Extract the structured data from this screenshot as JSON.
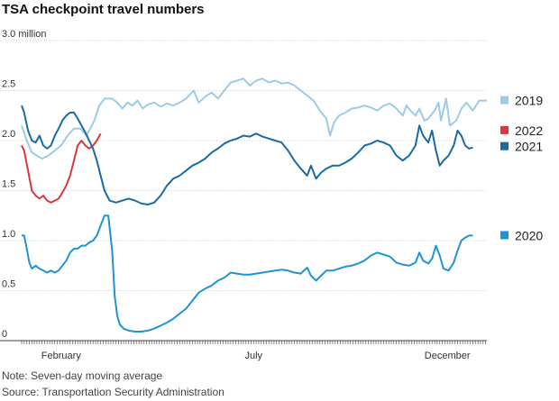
{
  "chart_data": {
    "type": "line",
    "title": "TSA checkpoint travel numbers",
    "y_unit_label": "3.0 million",
    "ylim": [
      0,
      3.0
    ],
    "y_ticks": [
      0,
      0.5,
      1.0,
      1.5,
      2.0,
      2.5,
      3.0
    ],
    "y_tick_labels": [
      "0",
      "0.5",
      "1.0",
      "1.5",
      "2.0",
      "2.5",
      "3.0 million"
    ],
    "x_unit": "day of year",
    "xlim": [
      1,
      366
    ],
    "x_tick_labels": [
      {
        "label": "February",
        "day": 32
      },
      {
        "label": "July",
        "day": 183
      },
      {
        "label": "December",
        "day": 335
      }
    ],
    "grid": true,
    "legend": "right",
    "series": [
      {
        "name": "2019",
        "color": "#9ccbe8",
        "points": [
          [
            1,
            2.15
          ],
          [
            5,
            2.0
          ],
          [
            9,
            1.88
          ],
          [
            13,
            1.85
          ],
          [
            17,
            1.82
          ],
          [
            22,
            1.85
          ],
          [
            27,
            1.9
          ],
          [
            32,
            1.95
          ],
          [
            37,
            2.05
          ],
          [
            42,
            2.12
          ],
          [
            47,
            2.12
          ],
          [
            52,
            2.05
          ],
          [
            58,
            2.2
          ],
          [
            62,
            2.35
          ],
          [
            66,
            2.42
          ],
          [
            72,
            2.42
          ],
          [
            76,
            2.38
          ],
          [
            80,
            2.32
          ],
          [
            84,
            2.38
          ],
          [
            88,
            2.35
          ],
          [
            92,
            2.4
          ],
          [
            96,
            2.32
          ],
          [
            100,
            2.36
          ],
          [
            105,
            2.38
          ],
          [
            110,
            2.34
          ],
          [
            115,
            2.37
          ],
          [
            120,
            2.35
          ],
          [
            125,
            2.38
          ],
          [
            130,
            2.42
          ],
          [
            136,
            2.5
          ],
          [
            140,
            2.38
          ],
          [
            145,
            2.44
          ],
          [
            150,
            2.48
          ],
          [
            155,
            2.42
          ],
          [
            160,
            2.5
          ],
          [
            165,
            2.58
          ],
          [
            170,
            2.6
          ],
          [
            175,
            2.62
          ],
          [
            180,
            2.55
          ],
          [
            185,
            2.6
          ],
          [
            190,
            2.62
          ],
          [
            195,
            2.58
          ],
          [
            200,
            2.6
          ],
          [
            205,
            2.57
          ],
          [
            210,
            2.58
          ],
          [
            215,
            2.55
          ],
          [
            220,
            2.5
          ],
          [
            225,
            2.45
          ],
          [
            230,
            2.4
          ],
          [
            235,
            2.3
          ],
          [
            240,
            2.22
          ],
          [
            243,
            2.05
          ],
          [
            246,
            2.18
          ],
          [
            250,
            2.25
          ],
          [
            255,
            2.28
          ],
          [
            260,
            2.32
          ],
          [
            265,
            2.33
          ],
          [
            270,
            2.35
          ],
          [
            275,
            2.33
          ],
          [
            280,
            2.3
          ],
          [
            285,
            2.35
          ],
          [
            290,
            2.37
          ],
          [
            295,
            2.32
          ],
          [
            300,
            2.25
          ],
          [
            303,
            2.35
          ],
          [
            306,
            2.3
          ],
          [
            310,
            2.25
          ],
          [
            313,
            2.32
          ],
          [
            317,
            2.2
          ],
          [
            320,
            2.22
          ],
          [
            325,
            2.3
          ],
          [
            328,
            2.38
          ],
          [
            330,
            2.2
          ],
          [
            334,
            2.42
          ],
          [
            337,
            2.15
          ],
          [
            342,
            2.2
          ],
          [
            346,
            2.32
          ],
          [
            350,
            2.38
          ],
          [
            355,
            2.3
          ],
          [
            360,
            2.4
          ],
          [
            366,
            2.4
          ]
        ]
      },
      {
        "name": "2022",
        "color": "#d9363e",
        "points": [
          [
            1,
            1.95
          ],
          [
            3,
            1.9
          ],
          [
            6,
            1.7
          ],
          [
            9,
            1.5
          ],
          [
            12,
            1.45
          ],
          [
            15,
            1.42
          ],
          [
            18,
            1.45
          ],
          [
            21,
            1.4
          ],
          [
            24,
            1.38
          ],
          [
            27,
            1.4
          ],
          [
            30,
            1.42
          ],
          [
            33,
            1.48
          ],
          [
            36,
            1.55
          ],
          [
            39,
            1.65
          ],
          [
            42,
            1.8
          ],
          [
            45,
            1.95
          ],
          [
            48,
            2.0
          ],
          [
            51,
            1.95
          ],
          [
            54,
            1.92
          ],
          [
            57,
            1.95
          ],
          [
            60,
            2.0
          ],
          [
            63,
            2.07
          ]
        ]
      },
      {
        "name": "2021",
        "color": "#1a6aa3",
        "points": [
          [
            1,
            2.35
          ],
          [
            3,
            2.28
          ],
          [
            6,
            2.1
          ],
          [
            9,
            2.0
          ],
          [
            12,
            1.98
          ],
          [
            15,
            2.05
          ],
          [
            18,
            1.95
          ],
          [
            21,
            1.92
          ],
          [
            24,
            1.95
          ],
          [
            27,
            2.05
          ],
          [
            30,
            2.12
          ],
          [
            33,
            2.2
          ],
          [
            36,
            2.25
          ],
          [
            39,
            2.28
          ],
          [
            42,
            2.28
          ],
          [
            45,
            2.22
          ],
          [
            48,
            2.15
          ],
          [
            51,
            2.08
          ],
          [
            54,
            2.0
          ],
          [
            57,
            1.92
          ],
          [
            60,
            1.8
          ],
          [
            63,
            1.65
          ],
          [
            66,
            1.5
          ],
          [
            70,
            1.4
          ],
          [
            75,
            1.38
          ],
          [
            80,
            1.4
          ],
          [
            85,
            1.42
          ],
          [
            90,
            1.4
          ],
          [
            95,
            1.37
          ],
          [
            100,
            1.36
          ],
          [
            105,
            1.38
          ],
          [
            110,
            1.45
          ],
          [
            115,
            1.55
          ],
          [
            120,
            1.62
          ],
          [
            125,
            1.65
          ],
          [
            130,
            1.7
          ],
          [
            135,
            1.75
          ],
          [
            140,
            1.78
          ],
          [
            145,
            1.82
          ],
          [
            150,
            1.88
          ],
          [
            155,
            1.92
          ],
          [
            160,
            1.97
          ],
          [
            165,
            2.0
          ],
          [
            170,
            2.02
          ],
          [
            175,
            2.05
          ],
          [
            180,
            2.04
          ],
          [
            185,
            2.07
          ],
          [
            190,
            2.04
          ],
          [
            195,
            2.02
          ],
          [
            200,
            2.0
          ],
          [
            205,
            1.98
          ],
          [
            210,
            1.9
          ],
          [
            215,
            1.8
          ],
          [
            220,
            1.72
          ],
          [
            225,
            1.65
          ],
          [
            228,
            1.75
          ],
          [
            232,
            1.62
          ],
          [
            236,
            1.68
          ],
          [
            240,
            1.72
          ],
          [
            245,
            1.75
          ],
          [
            250,
            1.75
          ],
          [
            255,
            1.78
          ],
          [
            260,
            1.82
          ],
          [
            265,
            1.88
          ],
          [
            270,
            1.95
          ],
          [
            275,
            1.97
          ],
          [
            280,
            2.0
          ],
          [
            285,
            1.98
          ],
          [
            290,
            1.95
          ],
          [
            295,
            1.85
          ],
          [
            300,
            1.8
          ],
          [
            305,
            1.85
          ],
          [
            310,
            1.95
          ],
          [
            313,
            2.15
          ],
          [
            316,
            2.05
          ],
          [
            320,
            1.98
          ],
          [
            323,
            2.1
          ],
          [
            326,
            1.9
          ],
          [
            329,
            1.75
          ],
          [
            332,
            1.8
          ],
          [
            336,
            1.85
          ],
          [
            340,
            1.95
          ],
          [
            343,
            2.1
          ],
          [
            346,
            2.05
          ],
          [
            349,
            1.95
          ],
          [
            352,
            1.92
          ],
          [
            355,
            1.93
          ]
        ]
      },
      {
        "name": "2020",
        "color": "#1f93d3",
        "points": [
          [
            1,
            1.05
          ],
          [
            3,
            1.05
          ],
          [
            5,
            0.92
          ],
          [
            7,
            0.78
          ],
          [
            9,
            0.72
          ],
          [
            12,
            0.75
          ],
          [
            15,
            0.72
          ],
          [
            18,
            0.7
          ],
          [
            21,
            0.68
          ],
          [
            24,
            0.7
          ],
          [
            27,
            0.68
          ],
          [
            30,
            0.7
          ],
          [
            33,
            0.75
          ],
          [
            36,
            0.8
          ],
          [
            39,
            0.88
          ],
          [
            42,
            0.92
          ],
          [
            45,
            0.92
          ],
          [
            48,
            0.95
          ],
          [
            51,
            0.95
          ],
          [
            54,
            0.98
          ],
          [
            57,
            1.0
          ],
          [
            60,
            1.05
          ],
          [
            63,
            1.15
          ],
          [
            66,
            1.25
          ],
          [
            69,
            1.25
          ],
          [
            72,
            0.9
          ],
          [
            74,
            0.45
          ],
          [
            76,
            0.25
          ],
          [
            78,
            0.16
          ],
          [
            81,
            0.12
          ],
          [
            85,
            0.1
          ],
          [
            90,
            0.09
          ],
          [
            95,
            0.09
          ],
          [
            100,
            0.1
          ],
          [
            105,
            0.12
          ],
          [
            110,
            0.15
          ],
          [
            115,
            0.18
          ],
          [
            120,
            0.22
          ],
          [
            125,
            0.27
          ],
          [
            130,
            0.32
          ],
          [
            135,
            0.4
          ],
          [
            140,
            0.48
          ],
          [
            145,
            0.52
          ],
          [
            150,
            0.55
          ],
          [
            155,
            0.6
          ],
          [
            160,
            0.63
          ],
          [
            165,
            0.68
          ],
          [
            170,
            0.67
          ],
          [
            175,
            0.66
          ],
          [
            180,
            0.66
          ],
          [
            185,
            0.67
          ],
          [
            190,
            0.68
          ],
          [
            195,
            0.69
          ],
          [
            200,
            0.7
          ],
          [
            205,
            0.71
          ],
          [
            210,
            0.7
          ],
          [
            215,
            0.68
          ],
          [
            220,
            0.67
          ],
          [
            225,
            0.73
          ],
          [
            228,
            0.65
          ],
          [
            232,
            0.6
          ],
          [
            236,
            0.65
          ],
          [
            240,
            0.7
          ],
          [
            245,
            0.7
          ],
          [
            250,
            0.72
          ],
          [
            255,
            0.74
          ],
          [
            260,
            0.75
          ],
          [
            265,
            0.77
          ],
          [
            270,
            0.8
          ],
          [
            275,
            0.85
          ],
          [
            280,
            0.88
          ],
          [
            285,
            0.86
          ],
          [
            290,
            0.84
          ],
          [
            295,
            0.78
          ],
          [
            300,
            0.76
          ],
          [
            305,
            0.75
          ],
          [
            310,
            0.78
          ],
          [
            313,
            0.88
          ],
          [
            316,
            0.8
          ],
          [
            320,
            0.77
          ],
          [
            323,
            0.82
          ],
          [
            326,
            0.95
          ],
          [
            329,
            0.85
          ],
          [
            332,
            0.72
          ],
          [
            336,
            0.7
          ],
          [
            340,
            0.78
          ],
          [
            343,
            0.9
          ],
          [
            346,
            1.0
          ],
          [
            349,
            1.03
          ],
          [
            352,
            1.05
          ],
          [
            355,
            1.05
          ]
        ]
      }
    ],
    "notes": [
      "Note: Seven-day moving average",
      "Source: Transportation Security Administration"
    ]
  },
  "footer": {
    "note": "Note: Seven-day moving average",
    "source": "Source: Transportation Security Administration"
  }
}
